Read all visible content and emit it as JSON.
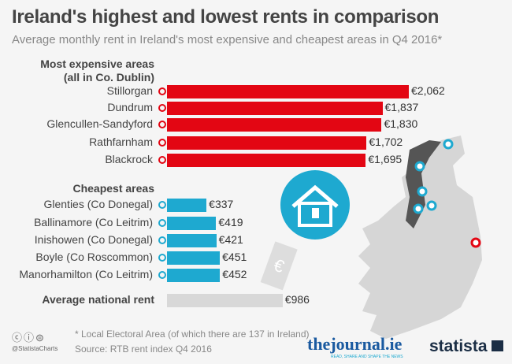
{
  "title": "Ireland's highest and lowest rents in comparison",
  "subtitle": "Average monthly rent in Ireland's most expensive and cheapest areas in Q4 2016*",
  "chart_data": {
    "type": "bar",
    "orientation": "horizontal",
    "groups": [
      {
        "label": "Most expensive areas (all in Co. Dublin)",
        "label_line1": "Most expensive areas",
        "label_line2": "(all in Co. Dublin)",
        "color": "#e30613",
        "categories": [
          "Stillorgan",
          "Dundrum",
          "Glencullen-Sandyford",
          "Rathfarnham",
          "Blackrock"
        ],
        "values": [
          2062,
          1837,
          1830,
          1702,
          1695
        ],
        "value_labels": [
          "€2,062",
          "€1,837",
          "€1,830",
          "€1,702",
          "€1,695"
        ]
      },
      {
        "label": "Cheapest areas",
        "color": "#1ea9d0",
        "categories": [
          "Glenties (Co Donegal)",
          "Ballinamore (Co Leitrim)",
          "Inishowen (Co Donegal)",
          "Boyle (Co Roscommon)",
          "Manorhamilton (Co Leitrim)"
        ],
        "values": [
          337,
          419,
          421,
          451,
          452
        ],
        "value_labels": [
          "€337",
          "€419",
          "€421",
          "€451",
          "€452"
        ]
      },
      {
        "label": "Average national rent",
        "color": "#d8d8d8",
        "categories": [
          ""
        ],
        "values": [
          986
        ],
        "value_labels": [
          "€986"
        ]
      }
    ],
    "xlim": [
      0,
      2062
    ],
    "grid": false,
    "currency": "€"
  },
  "footer": {
    "note": "* Local Electoral Area (of which there are 137 in Ireland)",
    "source": "Source: RTB rent index Q4 2016",
    "handle": "@StatistaCharts",
    "logo1": "thejournal.ie",
    "logo1_tag": "READ, SHARE AND SHAPE THE NEWS",
    "logo2": "statista"
  }
}
